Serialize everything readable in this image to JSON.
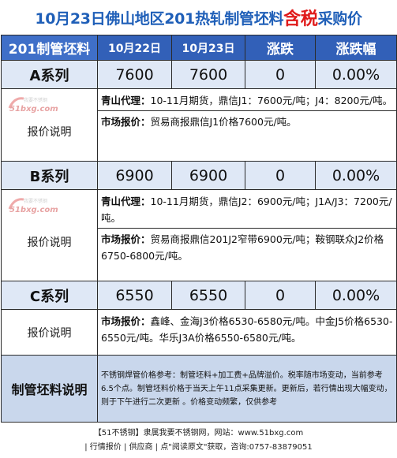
{
  "title": {
    "main": "10月23日佛山地区201热轧制管坯料",
    "highlight": "含税",
    "tail": "采购价"
  },
  "header": {
    "product": "201制管坯料",
    "date1": "10月22日",
    "date2": "10月23日",
    "change": "涨跌",
    "pct": "涨跌幅"
  },
  "rows": [
    {
      "name": "A系列",
      "prev": "7600",
      "curr": "7600",
      "change": "0",
      "pct": "0.00%",
      "label": "报价说明",
      "note1_key": "青山代理：",
      "note1_text": "10-11月期货，鼎信J1：7600元/吨；J4：8200元/吨。",
      "note2_key": "市场报价：",
      "note2_text": "贸易商报鼎信J1价格7600元/吨。"
    },
    {
      "name": "B系列",
      "prev": "6900",
      "curr": "6900",
      "change": "0",
      "pct": "0.00%",
      "label": "报价说明",
      "note1_key": "青山代理：",
      "note1_text": "10-11月期货，鼎信J2：6900元/吨；J1A/J3：7200元/吨。",
      "note2_key": "市场报价：",
      "note2_text": "贸易商报鼎信201J2窄带6900元/吨；鞍钢联众J2价格6750-6800元/吨。"
    },
    {
      "name": "C系列",
      "prev": "6550",
      "curr": "6550",
      "change": "0",
      "pct": "0.00%",
      "label": "报价说明",
      "note1_key": "市场报价：",
      "note1_text": "鑫峰、金海J3价格6530-6580元/吨。中金J5价格6530-6550元/吨。华乐J3A价格6550-6580元/吨。"
    }
  ],
  "footer": {
    "label": "制管坯料说明",
    "text": "不锈钢焊管价格参考：制管坯料+加工费+品牌溢价。税率随市场变动，当前参考6.5个点。制管坯料价格于当天上午11点采集更新。更新后，若行情出现大幅变动，则于下午进行二次更新 。价格变动频繁，仅供参考"
  },
  "bottom": {
    "line1": "【51不锈钢】隶属我要不锈钢网，网站：www.51bxg.com",
    "line2": "| 行情报价 | 供应商 | 点\"阅读原文\"获取，咨询:0757-83879051"
  },
  "watermark": {
    "site": "51bxg.com",
    "slogan": "我要不锈钢"
  },
  "colors": {
    "title": "#1f5fb8",
    "highlight": "#e01a1a",
    "header_bg": "#3260b8",
    "row_bg": "#dfe8f6",
    "footer_bg": "#c9d7ec"
  }
}
